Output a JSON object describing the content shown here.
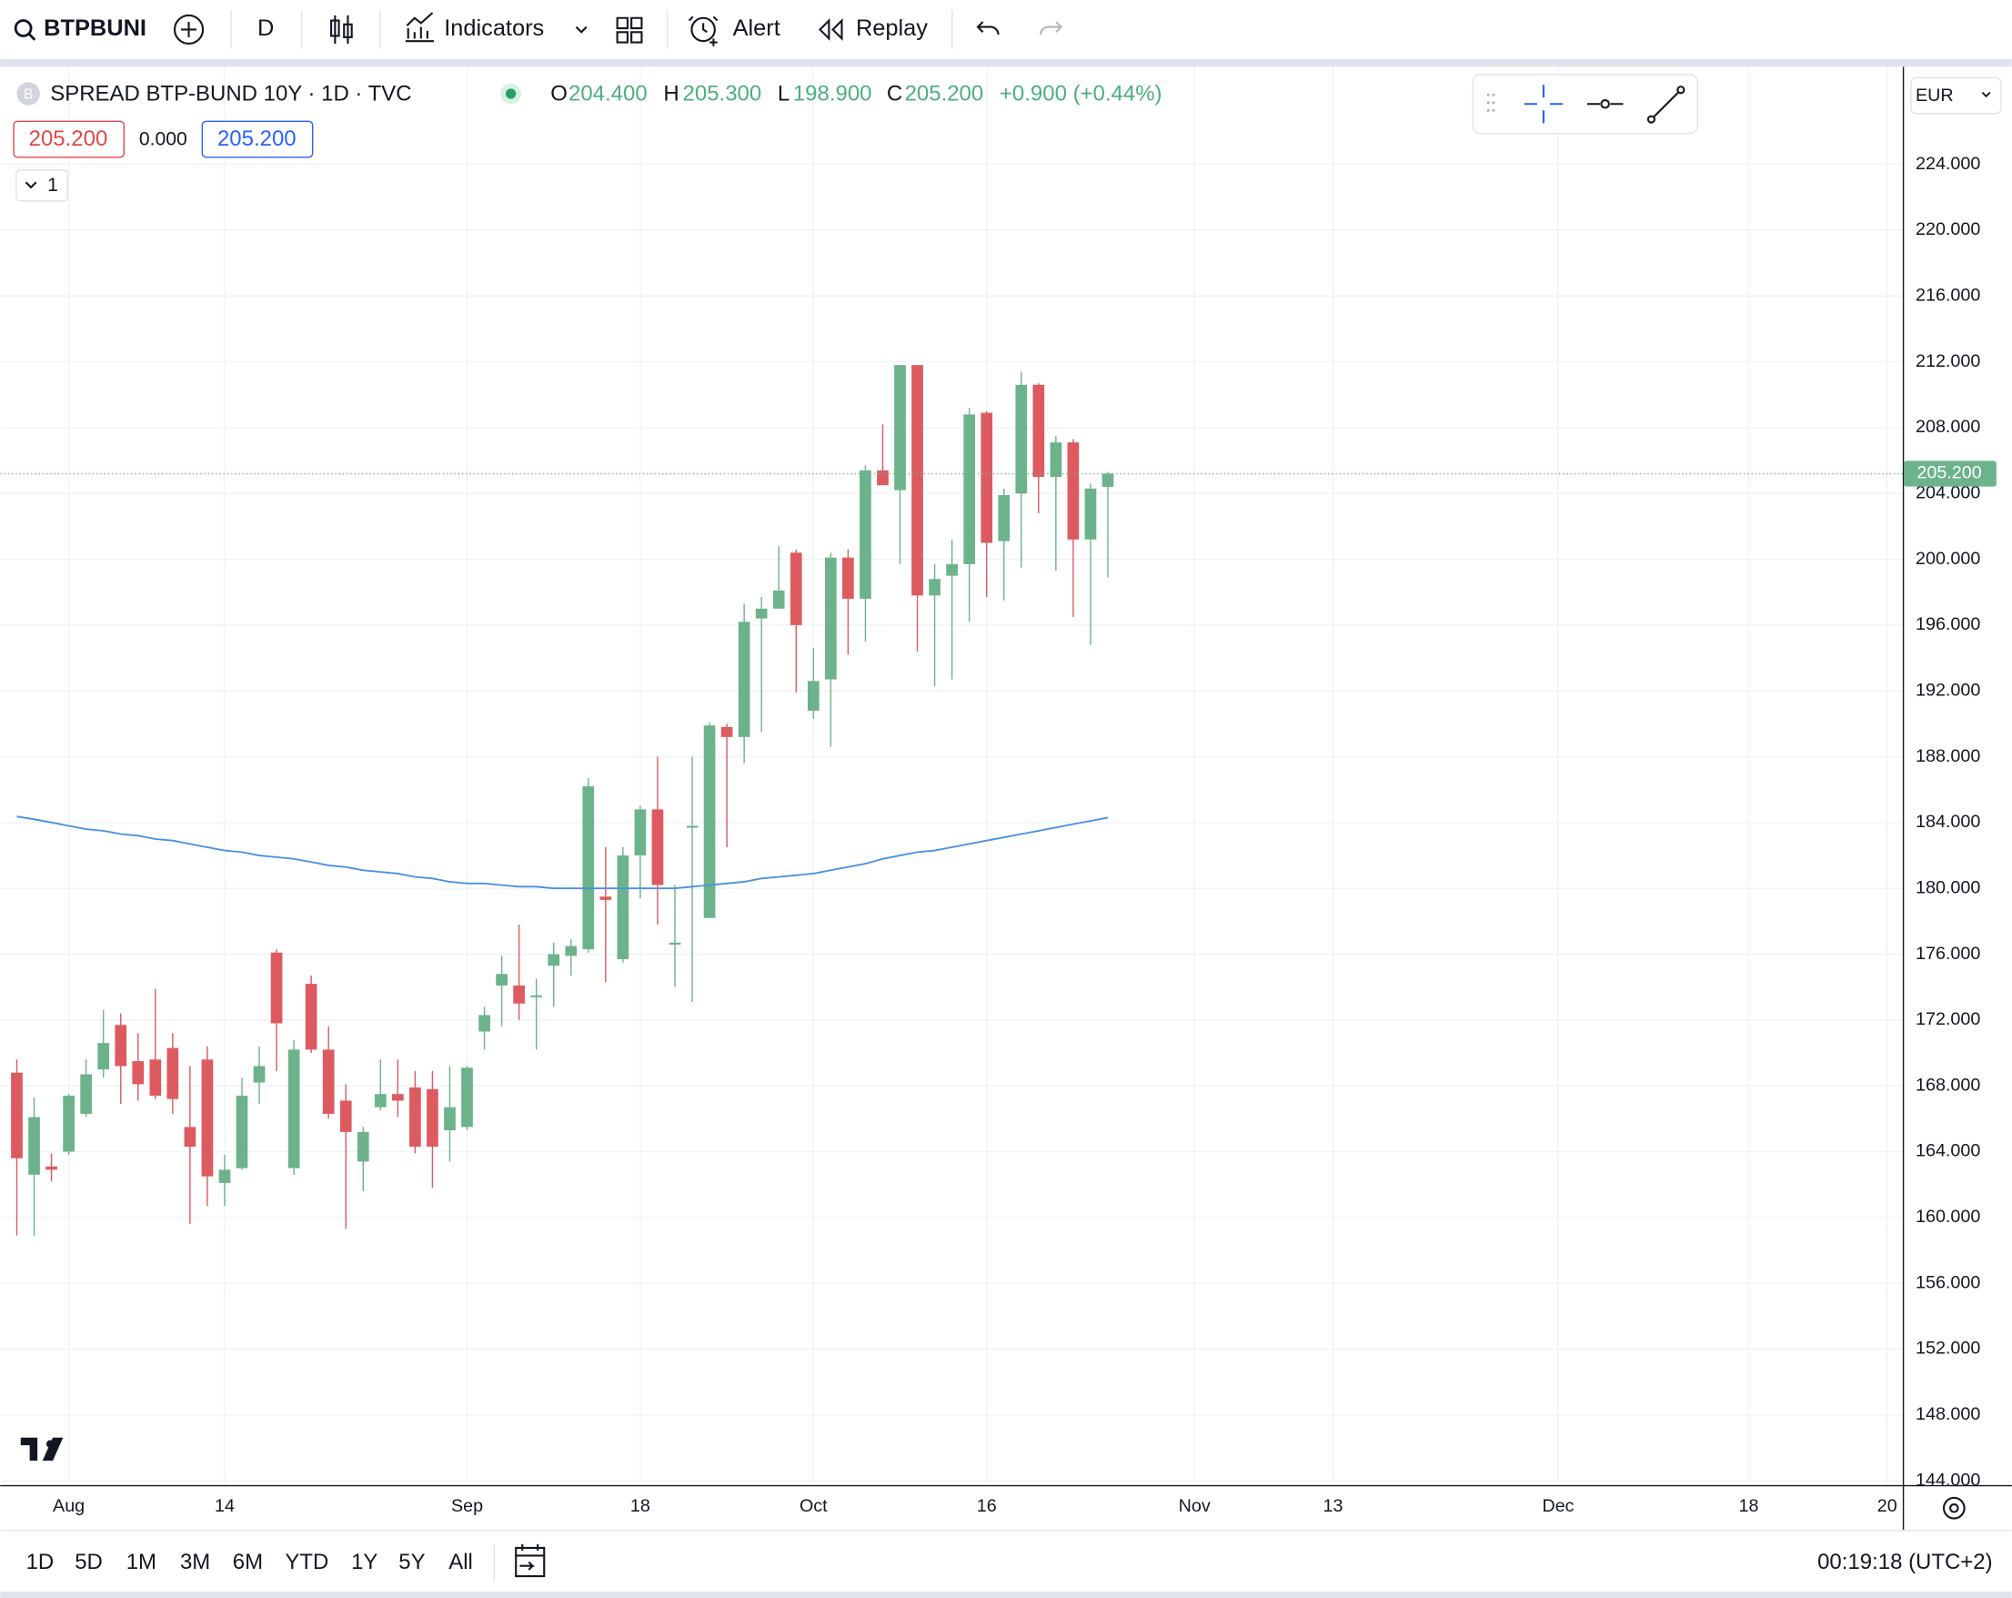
{
  "toolbar": {
    "symbol": "BTPBUNI",
    "interval": "D",
    "indicators": "Indicators",
    "alert": "Alert",
    "replay": "Replay"
  },
  "legend": {
    "logo": "B",
    "title": "SPREAD BTP-BUND 10Y · 1D · TVC",
    "open_label": "O",
    "open": "204.400",
    "high_label": "H",
    "high": "205.300",
    "low_label": "L",
    "low": "198.900",
    "close_label": "C",
    "close": "205.200",
    "change": "+0.900 (+0.44%)",
    "badges": [
      "205.200",
      "0.000",
      "205.200"
    ],
    "collapse": "1"
  },
  "chart_data": {
    "type": "candlestick",
    "categories": [
      null,
      null,
      null,
      null,
      null,
      null,
      null,
      null,
      null,
      null,
      null,
      null,
      null,
      null,
      null,
      null,
      null,
      null,
      null,
      null,
      null,
      null,
      null,
      null,
      null,
      null,
      null,
      null,
      null,
      null,
      null,
      null,
      null,
      null,
      null,
      null,
      null,
      null,
      null,
      null,
      null,
      null,
      null,
      null,
      null,
      null,
      null,
      null,
      null,
      null,
      null,
      null,
      null,
      null,
      null,
      null,
      null,
      null,
      null,
      null,
      null,
      null,
      null,
      null
    ],
    "open": [
      168.8,
      162.6,
      163.1,
      164.0,
      166.3,
      169.0,
      171.7,
      169.5,
      169.6,
      170.3,
      165.5,
      169.6,
      162.1,
      163.0,
      168.2,
      176.1,
      163.0,
      174.2,
      170.2,
      167.1,
      163.4,
      166.7,
      167.5,
      167.9,
      167.8,
      165.3,
      165.5,
      171.3,
      174.1,
      174.1,
      173.4,
      175.3,
      175.9,
      176.3,
      179.5,
      175.7,
      182.0,
      184.8,
      176.6,
      183.8,
      178.2,
      189.8,
      189.2,
      196.4,
      197.0,
      200.4,
      190.8,
      192.7,
      200.1,
      197.6,
      205.4,
      204.2,
      211.8,
      197.8,
      199.0,
      199.7,
      208.9,
      201.1,
      204.0,
      210.6,
      205.0,
      207.1,
      201.2,
      204.4
    ],
    "high": [
      169.6,
      167.3,
      163.9,
      167.5,
      169.6,
      172.6,
      172.4,
      171.2,
      173.9,
      171.2,
      169.2,
      170.4,
      163.8,
      168.5,
      170.4,
      176.3,
      170.8,
      174.7,
      171.6,
      168.1,
      165.5,
      169.6,
      169.6,
      168.9,
      168.9,
      169.2,
      169.2,
      172.8,
      175.9,
      177.8,
      174.5,
      176.7,
      176.9,
      186.7,
      182.5,
      182.5,
      185.0,
      188.0,
      180.2,
      188.0,
      190.1,
      190.0,
      197.3,
      197.7,
      200.8,
      200.6,
      194.6,
      200.4,
      200.6,
      205.7,
      208.2,
      211.8,
      211.8,
      199.7,
      201.2,
      209.2,
      209.0,
      204.3,
      211.4,
      210.7,
      207.5,
      207.3,
      204.6,
      205.3
    ],
    "low": [
      158.9,
      158.9,
      162.2,
      163.8,
      166.1,
      168.5,
      166.9,
      167.1,
      167.2,
      166.3,
      159.6,
      160.7,
      160.7,
      162.9,
      166.9,
      168.9,
      162.6,
      170.0,
      166.0,
      159.3,
      161.6,
      166.5,
      166.1,
      163.9,
      161.8,
      163.4,
      165.3,
      170.2,
      171.6,
      172.0,
      170.2,
      172.8,
      174.7,
      176.1,
      174.3,
      175.5,
      179.4,
      177.8,
      174.0,
      173.1,
      178.2,
      182.5,
      187.6,
      189.5,
      197.0,
      191.9,
      190.3,
      188.6,
      194.2,
      195.0,
      204.5,
      199.7,
      194.4,
      192.3,
      192.7,
      196.2,
      197.7,
      197.5,
      199.5,
      202.8,
      199.3,
      196.5,
      194.8,
      198.9
    ],
    "close": [
      163.6,
      166.1,
      162.9,
      167.4,
      168.7,
      170.6,
      169.2,
      168.1,
      167.4,
      167.2,
      164.3,
      162.5,
      162.9,
      167.4,
      169.2,
      171.8,
      170.2,
      170.2,
      166.3,
      165.2,
      165.2,
      167.5,
      167.1,
      164.3,
      164.3,
      166.7,
      169.1,
      172.3,
      174.8,
      173.0,
      173.5,
      176.0,
      176.5,
      186.2,
      179.3,
      182.0,
      184.8,
      180.2,
      176.7,
      183.8,
      189.9,
      189.2,
      196.2,
      197.0,
      198.1,
      196.0,
      192.6,
      200.1,
      197.6,
      205.4,
      204.5,
      211.8,
      197.8,
      198.8,
      199.7,
      208.8,
      201.0,
      203.9,
      210.6,
      205.0,
      207.1,
      201.2,
      204.3,
      205.2
    ],
    "ma": {
      "color": "#4a8fe0",
      "values": [
        184.37,
        184.2,
        184.0,
        183.8,
        183.6,
        183.5,
        183.3,
        183.2,
        183.0,
        182.9,
        182.7,
        182.5,
        182.3,
        182.2,
        182.0,
        181.9,
        181.8,
        181.6,
        181.4,
        181.3,
        181.1,
        181.0,
        180.9,
        180.7,
        180.6,
        180.4,
        180.3,
        180.3,
        180.2,
        180.1,
        180.1,
        180.0,
        180.0,
        180.0,
        180.0,
        180.0,
        180.0,
        180.0,
        180.0,
        180.1,
        180.2,
        180.3,
        180.4,
        180.6,
        180.7,
        180.8,
        180.9,
        181.1,
        181.3,
        181.5,
        181.8,
        182.0,
        182.2,
        182.3,
        182.5,
        182.7,
        182.9,
        183.1,
        183.3,
        183.5,
        183.7,
        183.9,
        184.1,
        184.3
      ]
    },
    "up_color": "#6cb38c",
    "down_color": "#dd5b60",
    "grid": true,
    "ylim": [
      143.74,
      229.93
    ],
    "yticks": [
      {
        "value": 224,
        "label": "224.000"
      },
      {
        "value": 220,
        "label": "220.000"
      },
      {
        "value": 216,
        "label": "216.000"
      },
      {
        "value": 212,
        "label": "212.000"
      },
      {
        "value": 208,
        "label": "208.000"
      },
      {
        "value": 204,
        "label": "204.000"
      },
      {
        "value": 200,
        "label": "200.000"
      },
      {
        "value": 196,
        "label": "196.000"
      },
      {
        "value": 192,
        "label": "192.000"
      },
      {
        "value": 188,
        "label": "188.000"
      },
      {
        "value": 184,
        "label": "184.000"
      },
      {
        "value": 180,
        "label": "180.000"
      },
      {
        "value": 176,
        "label": "176.000"
      },
      {
        "value": 172,
        "label": "172.000"
      },
      {
        "value": 168,
        "label": "168.000"
      },
      {
        "value": 164,
        "label": "164.000"
      },
      {
        "value": 160,
        "label": "160.000"
      },
      {
        "value": 156,
        "label": "156.000"
      },
      {
        "value": 152,
        "label": "152.000"
      },
      {
        "value": 148,
        "label": "148.000"
      },
      {
        "value": 144,
        "label": "144.000"
      }
    ],
    "xlim": [
      -0.96,
      108.9
    ],
    "xticks": [
      {
        "value": 3,
        "label": "Aug"
      },
      {
        "value": 12,
        "label": "14"
      },
      {
        "value": 26,
        "label": "Sep"
      },
      {
        "value": 36,
        "label": "18"
      },
      {
        "value": 46,
        "label": "Oct"
      },
      {
        "value": 56,
        "label": "16"
      },
      {
        "value": 68,
        "label": "Nov"
      },
      {
        "value": 76,
        "label": "13"
      },
      {
        "value": 89,
        "label": "Dec"
      },
      {
        "value": 100,
        "label": "18"
      },
      {
        "value": 108,
        "label": "20"
      }
    ],
    "currency": "EUR",
    "last_price_label": "205.200"
  },
  "bottom_bar": {
    "ranges": [
      "1D",
      "5D",
      "1M",
      "3M",
      "6M",
      "YTD",
      "1Y",
      "5Y",
      "All"
    ],
    "clock": "00:19:18 (UTC+2)"
  }
}
